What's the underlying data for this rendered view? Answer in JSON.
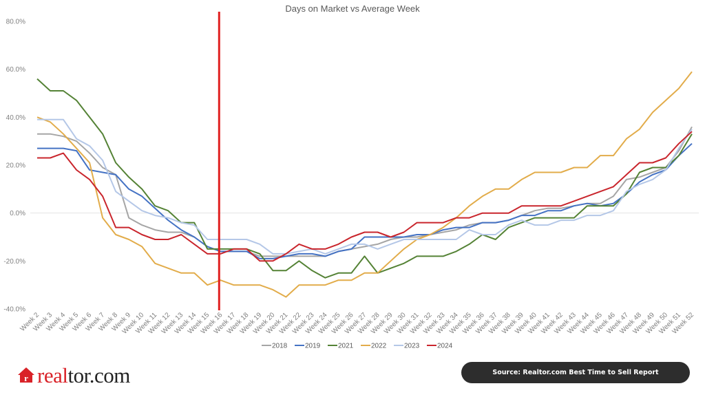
{
  "chart_data": {
    "type": "line",
    "title": "Days on Market vs Average Week",
    "xlabel": "",
    "ylabel": "",
    "ylim": [
      -40,
      80
    ],
    "yticks": [
      80,
      60,
      40,
      20,
      0,
      -20,
      -40
    ],
    "ytick_labels": [
      "80.0%",
      "60.0%",
      "40.0%",
      "20.0%",
      "0.0%",
      "-20.0%",
      "-40.0%"
    ],
    "grid": "horizontal-zero-line",
    "legend_position": "bottom",
    "marker_week": "Week 16",
    "categories": [
      "Week 2",
      "Week 3",
      "Week 4",
      "Week 5",
      "Week 6",
      "Week 7",
      "Week 8",
      "Week 9",
      "Week 10",
      "Week 11",
      "Week 12",
      "Week 13",
      "Week 14",
      "Week 15",
      "Week 16",
      "Week 17",
      "Week 18",
      "Week 19",
      "Week 20",
      "Week 21",
      "Week 22",
      "Week 23",
      "Week 24",
      "Week 25",
      "Week 26",
      "Week 27",
      "Week 28",
      "Week 29",
      "Week 30",
      "Week 31",
      "Week 32",
      "Week 33",
      "Week 34",
      "Week 35",
      "Week 36",
      "Week 37",
      "Week 38",
      "Week 39",
      "Week 40",
      "Week 41",
      "Week 42",
      "Week 43",
      "Week 44",
      "Week 45",
      "Week 46",
      "Week 47",
      "Week 48",
      "Week 49",
      "Week 50",
      "Week 51",
      "Week 52"
    ],
    "series": [
      {
        "name": "2018",
        "color": "#a5a5a5",
        "values": [
          33,
          33,
          32,
          30,
          25,
          19,
          16,
          -2,
          -5,
          -7,
          -8,
          -8,
          -10,
          -14,
          -16,
          -16,
          -16,
          -18,
          -18,
          -18,
          -18,
          -18,
          -18,
          -16,
          -15,
          -14,
          -13,
          -11,
          -10,
          -10,
          -9,
          -8,
          -7,
          -5,
          -4,
          -4,
          -3,
          -1,
          1,
          2,
          2,
          3,
          4,
          4,
          7,
          14,
          15,
          17,
          19,
          26,
          36
        ]
      },
      {
        "name": "2019",
        "color": "#4472c4",
        "values": [
          27,
          27,
          27,
          26,
          18,
          17,
          16,
          10,
          7,
          2,
          -3,
          -7,
          -10,
          -14,
          -16,
          -16,
          -16,
          -19,
          -19,
          -18,
          -17,
          -17,
          -18,
          -16,
          -15,
          -10,
          -10,
          -10,
          -10,
          -9,
          -9,
          -7,
          -6,
          -6,
          -4,
          -4,
          -3,
          -1,
          -1,
          1,
          1,
          3,
          4,
          3,
          4,
          8,
          13,
          16,
          18,
          24,
          29
        ]
      },
      {
        "name": "2021",
        "color": "#548235",
        "values": [
          56,
          51,
          51,
          47,
          40,
          33,
          21,
          15,
          10,
          3,
          1,
          -4,
          -4,
          -15,
          -15,
          -15,
          -15,
          -17,
          -24,
          -24,
          -20,
          -24,
          -27,
          -25,
          -25,
          -18,
          -25,
          -23,
          -21,
          -18,
          -18,
          -18,
          -16,
          -13,
          -9,
          -11,
          -6,
          -4,
          -2,
          -2,
          -2,
          -2,
          3,
          3,
          3,
          8,
          17,
          19,
          19,
          24,
          33
        ]
      },
      {
        "name": "2022",
        "color": "#e2ac4a",
        "values": [
          40,
          38,
          33,
          27,
          21,
          -2,
          -9,
          -11,
          -14,
          -21,
          -23,
          -25,
          -25,
          -30,
          -28,
          -30,
          -30,
          -30,
          -32,
          -35,
          -30,
          -30,
          -30,
          -28,
          -28,
          -25,
          -25,
          -20,
          -15,
          -11,
          -9,
          -6,
          -2,
          3,
          7,
          10,
          10,
          14,
          17,
          17,
          17,
          19,
          19,
          24,
          24,
          31,
          35,
          42,
          47,
          52,
          59
        ]
      },
      {
        "name": "2023",
        "color": "#b4c7e7",
        "values": [
          39,
          39,
          39,
          31,
          28,
          22,
          9,
          5,
          1,
          -1,
          -2,
          -4,
          -5,
          -11,
          -11,
          -11,
          -11,
          -13,
          -17,
          -17,
          -16,
          -15,
          -17,
          -15,
          -13,
          -13,
          -15,
          -13,
          -11,
          -11,
          -11,
          -11,
          -11,
          -7,
          -9,
          -9,
          -5,
          -3,
          -5,
          -5,
          -3,
          -3,
          -1,
          -1,
          1,
          9,
          12,
          14,
          18,
          27,
          35
        ]
      },
      {
        "name": "2024",
        "color": "#c9252c",
        "values": [
          23,
          23,
          25,
          18,
          14,
          7,
          -6,
          -6,
          -9,
          -11,
          -11,
          -9,
          -13,
          -17,
          -17,
          -15,
          -15,
          -20,
          -20,
          -17,
          -13,
          -15,
          -15,
          -13,
          -10,
          -8,
          -8,
          -10,
          -8,
          -4,
          -4,
          -4,
          -2,
          -2,
          0,
          0,
          0,
          3,
          3,
          3,
          3,
          5,
          7,
          9,
          11,
          16,
          21,
          21,
          23,
          29,
          34
        ]
      }
    ],
    "marker_color": "#e02020"
  },
  "branding": {
    "logo_red": "real",
    "logo_dark": "tor.com",
    "logo_mark": "r"
  },
  "source": {
    "label": "Source: Realtor.com Best Time to Sell Report"
  }
}
